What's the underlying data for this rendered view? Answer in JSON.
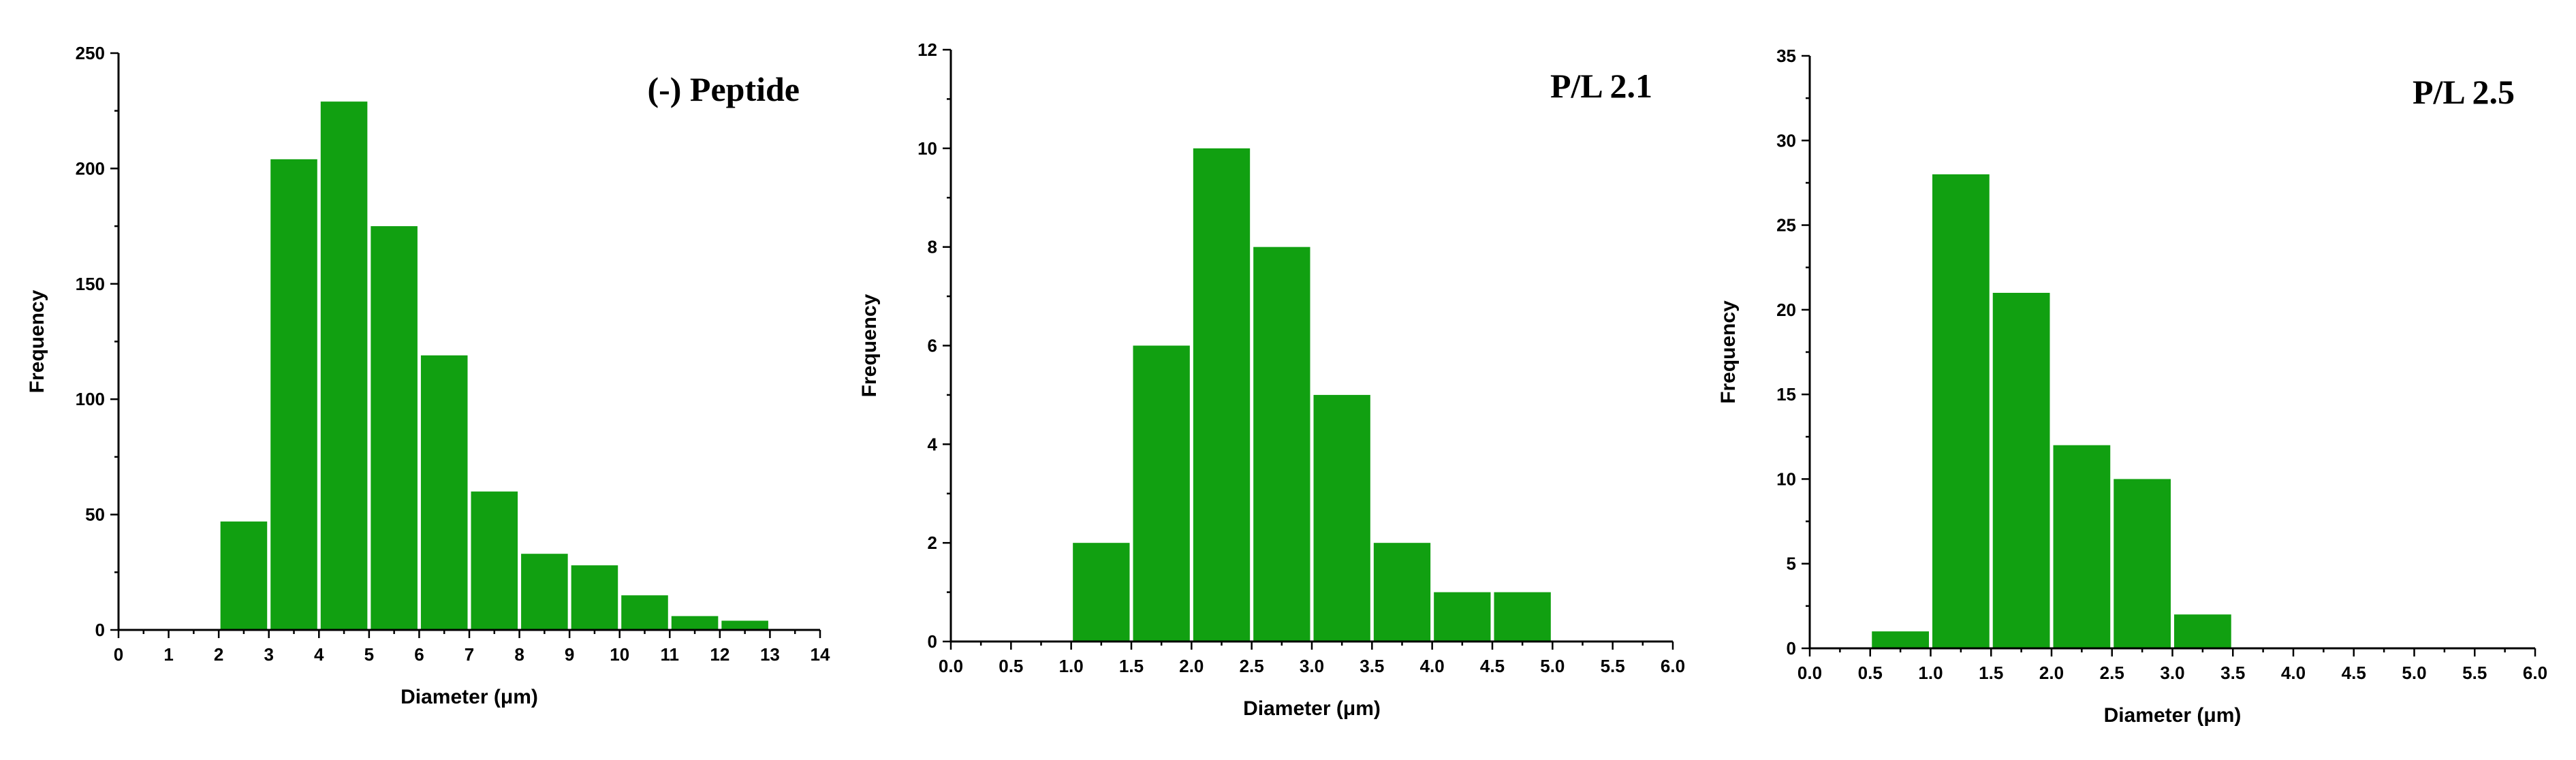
{
  "chart_data": [
    {
      "type": "bar",
      "title": "(-) Peptide",
      "xlabel": "Diameter (μm)",
      "ylabel": "Frequency",
      "xlim": [
        0,
        14
      ],
      "ylim": [
        0,
        250
      ],
      "xticks": [
        0,
        1,
        2,
        3,
        4,
        5,
        6,
        7,
        8,
        9,
        10,
        11,
        12,
        13,
        14
      ],
      "yticks": [
        0,
        50,
        100,
        150,
        200,
        250
      ],
      "bin_width": 1,
      "bins": [
        {
          "x0": 2,
          "x1": 3,
          "value": 47
        },
        {
          "x0": 3,
          "x1": 4,
          "value": 204
        },
        {
          "x0": 4,
          "x1": 5,
          "value": 229
        },
        {
          "x0": 5,
          "x1": 6,
          "value": 175
        },
        {
          "x0": 6,
          "x1": 7,
          "value": 119
        },
        {
          "x0": 7,
          "x1": 8,
          "value": 60
        },
        {
          "x0": 8,
          "x1": 9,
          "value": 33
        },
        {
          "x0": 9,
          "x1": 10,
          "value": 28
        },
        {
          "x0": 10,
          "x1": 11,
          "value": 15
        },
        {
          "x0": 11,
          "x1": 12,
          "value": 6
        },
        {
          "x0": 12,
          "x1": 13,
          "value": 4
        }
      ],
      "grid": false,
      "bar_color": "#11a011"
    },
    {
      "type": "bar",
      "title": "P/L 2.1",
      "xlabel": "Diameter (μm)",
      "ylabel": "Frequency",
      "xlim": [
        0,
        6
      ],
      "ylim": [
        0,
        12
      ],
      "xticks": [
        "0.0",
        "0.5",
        "1.0",
        "1.5",
        "2.0",
        "2.5",
        "3.0",
        "3.5",
        "4.0",
        "4.5",
        "5.0",
        "5.5",
        "6.0"
      ],
      "yticks": [
        0,
        2,
        4,
        6,
        8,
        10,
        12
      ],
      "bin_width": 0.5,
      "bins": [
        {
          "x0": 1.0,
          "x1": 1.5,
          "value": 2
        },
        {
          "x0": 1.5,
          "x1": 2.0,
          "value": 6
        },
        {
          "x0": 2.0,
          "x1": 2.5,
          "value": 10
        },
        {
          "x0": 2.5,
          "x1": 3.0,
          "value": 8
        },
        {
          "x0": 3.0,
          "x1": 3.5,
          "value": 5
        },
        {
          "x0": 3.5,
          "x1": 4.0,
          "value": 2
        },
        {
          "x0": 4.0,
          "x1": 4.5,
          "value": 1
        },
        {
          "x0": 4.5,
          "x1": 5.0,
          "value": 1
        }
      ],
      "grid": false,
      "bar_color": "#11a011"
    },
    {
      "type": "bar",
      "title": "P/L 2.5",
      "xlabel": "Diameter (μm)",
      "ylabel": "Frequency",
      "xlim": [
        0,
        6
      ],
      "ylim": [
        0,
        35
      ],
      "xticks": [
        "0.0",
        "0.5",
        "1.0",
        "1.5",
        "2.0",
        "2.5",
        "3.0",
        "3.5",
        "4.0",
        "4.5",
        "5.0",
        "5.5",
        "6.0"
      ],
      "yticks": [
        0,
        5,
        10,
        15,
        20,
        25,
        30,
        35
      ],
      "bin_width": 0.5,
      "bins": [
        {
          "x0": 0.5,
          "x1": 1.0,
          "value": 1
        },
        {
          "x0": 1.0,
          "x1": 1.5,
          "value": 28
        },
        {
          "x0": 1.5,
          "x1": 2.0,
          "value": 21
        },
        {
          "x0": 2.0,
          "x1": 2.5,
          "value": 12
        },
        {
          "x0": 2.5,
          "x1": 3.0,
          "value": 10
        },
        {
          "x0": 3.0,
          "x1": 3.5,
          "value": 2
        }
      ],
      "grid": false,
      "bar_color": "#11a011"
    }
  ]
}
